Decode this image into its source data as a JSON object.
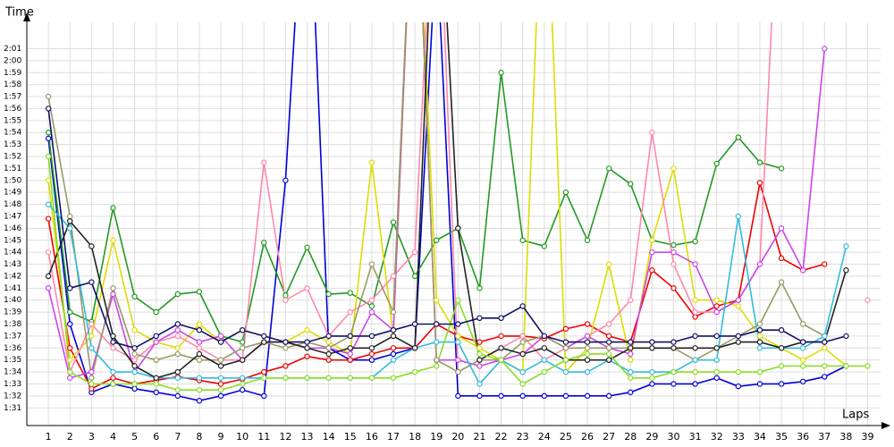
{
  "chart_data": {
    "type": "line",
    "y_label": "Time",
    "x_label": "Laps",
    "x": [
      1,
      2,
      3,
      4,
      5,
      6,
      7,
      8,
      9,
      10,
      11,
      12,
      13,
      14,
      15,
      16,
      17,
      18,
      19,
      20,
      21,
      22,
      23,
      24,
      25,
      26,
      27,
      28,
      29,
      30,
      31,
      32,
      33,
      34,
      35,
      36,
      37,
      38,
      39
    ],
    "xlim": [
      0,
      39.6
    ],
    "ylim": [
      89.6,
      123.2
    ],
    "yticks": [
      {
        "value": 91,
        "label": "1:31"
      },
      {
        "value": 92,
        "label": "1:32"
      },
      {
        "value": 93,
        "label": "1:33"
      },
      {
        "value": 94,
        "label": "1:34"
      },
      {
        "value": 95,
        "label": "1:35"
      },
      {
        "value": 96,
        "label": "1:36"
      },
      {
        "value": 97,
        "label": "1:37"
      },
      {
        "value": 98,
        "label": "1:38"
      },
      {
        "value": 99,
        "label": "1:39"
      },
      {
        "value": 100,
        "label": "1:40"
      },
      {
        "value": 101,
        "label": "1:41"
      },
      {
        "value": 102,
        "label": "1:42"
      },
      {
        "value": 103,
        "label": "1:43"
      },
      {
        "value": 104,
        "label": "1:44"
      },
      {
        "value": 105,
        "label": "1:45"
      },
      {
        "value": 106,
        "label": "1:46"
      },
      {
        "value": 107,
        "label": "1:47"
      },
      {
        "value": 108,
        "label": "1:48"
      },
      {
        "value": 109,
        "label": "1:49"
      },
      {
        "value": 110,
        "label": "1:50"
      },
      {
        "value": 111,
        "label": "1:51"
      },
      {
        "value": 112,
        "label": "1:52"
      },
      {
        "value": 113,
        "label": "1:53"
      },
      {
        "value": 114,
        "label": "1:54"
      },
      {
        "value": 115,
        "label": "1:55"
      },
      {
        "value": 116,
        "label": "1:56"
      },
      {
        "value": 117,
        "label": "1:57"
      },
      {
        "value": 118,
        "label": "1:58"
      },
      {
        "value": 119,
        "label": "1:59"
      },
      {
        "value": 120,
        "label": "2:00"
      },
      {
        "value": 121,
        "label": "2:01"
      }
    ],
    "grid": true,
    "series": [
      {
        "color": "#0000dd",
        "values": [
          113.5,
          98,
          92.3,
          93,
          92.6,
          92.3,
          92,
          91.6,
          92,
          92.5,
          92,
          110,
          140,
          96,
          95,
          95,
          95.5,
          96,
          130,
          92,
          92,
          92,
          92,
          92,
          92,
          92,
          92,
          92.3,
          93,
          93,
          93,
          93.5,
          92.8,
          93,
          93,
          93.2,
          93.6,
          94.5,
          null
        ]
      },
      {
        "color": "#ee0000",
        "values": [
          106.8,
          96,
          92.6,
          93.5,
          93,
          93.3,
          93.6,
          93.3,
          93,
          93.4,
          94,
          94.5,
          95.3,
          95,
          95,
          95.5,
          96,
          96,
          98,
          97,
          96.5,
          97,
          97,
          96.8,
          97.6,
          98,
          97,
          96.5,
          102.5,
          101,
          98.6,
          99.5,
          100,
          109.8,
          103.5,
          102.5,
          103,
          null,
          null
        ]
      },
      {
        "color": "#229922",
        "values": [
          114,
          99,
          98.2,
          107.7,
          100.3,
          99,
          100.5,
          100.7,
          97,
          96.5,
          104.8,
          100.4,
          104.4,
          100.5,
          100.6,
          99.5,
          106.5,
          102,
          105,
          106,
          101,
          119,
          105,
          104.5,
          109,
          105,
          111,
          109.7,
          105,
          104.6,
          104.9,
          111.4,
          113.6,
          111.5,
          111,
          null,
          null,
          null,
          null
        ]
      },
      {
        "color": "#dddd00",
        "values": [
          110,
          95,
          97,
          105,
          97.5,
          96.5,
          96,
          98,
          96.5,
          97.5,
          97,
          96.5,
          97.5,
          96.5,
          95.5,
          111.5,
          97,
          140,
          100,
          97,
          96,
          95,
          94,
          140,
          94,
          96,
          103,
          95,
          105,
          111,
          100,
          100,
          99.5,
          97,
          96,
          95,
          96,
          94.5,
          null
        ]
      },
      {
        "color": "#ff88aa",
        "values": [
          104,
          94,
          98,
          96,
          95,
          96.5,
          97,
          96,
          95,
          95,
          111.5,
          100,
          101,
          97,
          99,
          100,
          102,
          104,
          140,
          94,
          95,
          96,
          97,
          95,
          96,
          97,
          98,
          100,
          114,
          103,
          99,
          99,
          100,
          103,
          140,
          null,
          null,
          null,
          100
        ]
      },
      {
        "color": "#cc44ee",
        "values": [
          101,
          93.5,
          94,
          100.5,
          94,
          96.5,
          97.5,
          96.5,
          97,
          95,
          96.5,
          96.5,
          96,
          96,
          95.5,
          99,
          97.5,
          140,
          95,
          95,
          94.5,
          95,
          95.5,
          97,
          96,
          97,
          96,
          95.5,
          104,
          104,
          103,
          99,
          100,
          103,
          106,
          102.5,
          121,
          null,
          null
        ]
      },
      {
        "color": "#999966",
        "values": [
          117,
          107,
          93.5,
          101,
          95.5,
          95,
          95.5,
          95,
          95,
          96,
          96.5,
          96,
          96.5,
          96,
          97,
          103,
          99,
          140,
          95,
          94,
          95,
          95,
          96.5,
          97,
          96,
          96,
          96,
          96,
          96,
          96,
          95,
          96,
          97,
          98,
          101.5,
          98,
          97,
          null,
          null
        ]
      },
      {
        "color": "#33bbdd",
        "values": [
          108,
          106,
          96,
          94,
          94,
          93.5,
          93.5,
          93.5,
          93.5,
          93.5,
          93.5,
          93.5,
          93.5,
          93.5,
          93.5,
          93.5,
          95,
          96,
          96.5,
          96.5,
          93,
          95,
          94,
          95,
          94,
          94,
          95,
          94,
          94,
          94,
          95,
          95,
          107,
          96,
          96,
          96,
          97,
          104.5,
          null
        ]
      },
      {
        "color": "#222222",
        "values": [
          102,
          106.6,
          104.5,
          97,
          94.5,
          93.5,
          94,
          95.5,
          94.5,
          95,
          96.5,
          96.5,
          96,
          95.5,
          96,
          96,
          97,
          96,
          140,
          106,
          95,
          96,
          95.5,
          96,
          95,
          95,
          95,
          96,
          96,
          96,
          96,
          96,
          96.5,
          96.5,
          96,
          96.5,
          96.5,
          102.5,
          null
        ]
      },
      {
        "color": "#88dd22",
        "values": [
          112,
          94,
          93,
          93,
          93,
          93,
          92.5,
          92.5,
          92.5,
          93,
          93.5,
          93.5,
          93.5,
          93.5,
          93.5,
          93.5,
          93.5,
          94,
          94.5,
          100,
          95.5,
          95,
          93,
          94,
          95,
          95.5,
          95.5,
          93.5,
          93.5,
          94,
          94,
          94,
          94,
          94,
          94.5,
          94.5,
          94.5,
          94.5,
          94.5
        ]
      },
      {
        "color": "#111166",
        "values": [
          116,
          101,
          101.5,
          96.5,
          96,
          97,
          98,
          97.5,
          96.5,
          97.5,
          97,
          96.5,
          96.5,
          97,
          97,
          97,
          97.5,
          98,
          98,
          98,
          98.5,
          98.5,
          99.5,
          97,
          96.5,
          96.5,
          96.5,
          96.5,
          96.5,
          96.5,
          97,
          97,
          97,
          97.5,
          97.5,
          96.5,
          96.5,
          97,
          null
        ]
      }
    ]
  }
}
